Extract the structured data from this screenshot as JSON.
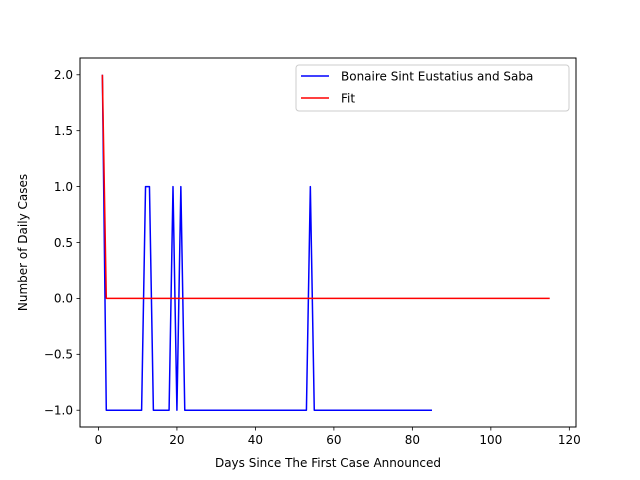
{
  "chart_data": {
    "type": "line",
    "title": "",
    "xlabel": "Days Since The First Case Announced",
    "ylabel": "Number of Daily Cases",
    "xlim": [
      -4.7,
      121.7
    ],
    "ylim": [
      -1.15,
      2.15
    ],
    "xticks": [
      0,
      20,
      40,
      60,
      80,
      100,
      120
    ],
    "xtick_labels": [
      "0",
      "20",
      "40",
      "60",
      "80",
      "100",
      "120"
    ],
    "yticks": [
      -1.0,
      -0.5,
      0.0,
      0.5,
      1.0,
      1.5,
      2.0
    ],
    "ytick_labels": [
      "−1.0",
      "−0.5",
      "0.0",
      "0.5",
      "1.0",
      "1.5",
      "2.0"
    ],
    "grid": false,
    "legend_position": "top-right",
    "series": [
      {
        "name": "Bonaire Sint Eustatius and Saba",
        "color": "#0000ff",
        "x": [
          1,
          2,
          11,
          12,
          13,
          14,
          18,
          19,
          20,
          21,
          22,
          53,
          54,
          55,
          85
        ],
        "y": [
          2,
          -1,
          -1,
          1,
          1,
          -1,
          -1,
          1,
          -1,
          1,
          -1,
          -1,
          1,
          -1,
          -1
        ]
      },
      {
        "name": "Fit",
        "color": "#ff0000",
        "x": [
          1,
          2,
          115
        ],
        "y": [
          2,
          0,
          0
        ]
      }
    ]
  }
}
